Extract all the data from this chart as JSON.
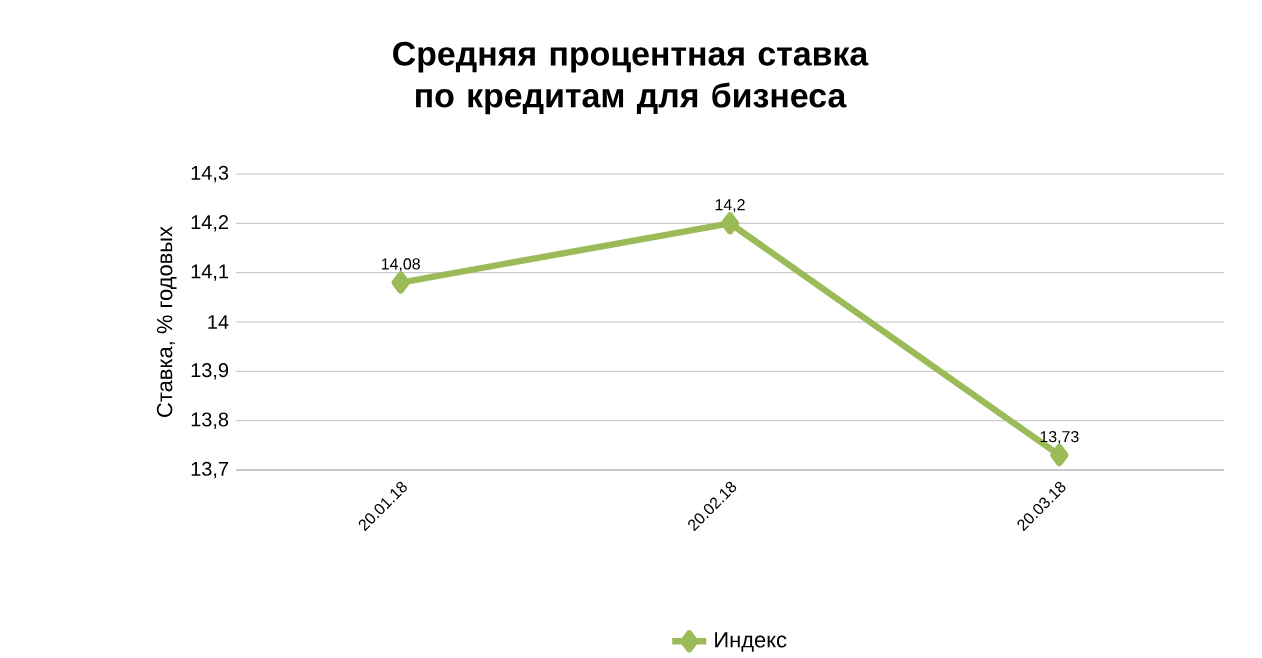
{
  "chart_data": {
    "type": "line",
    "title": "Средняя процентная ставка по кредитам для бизнеса",
    "ylabel": "Ставка, % годовых",
    "categories": [
      "20.01.18",
      "20.02.18",
      "20.03.18"
    ],
    "series": [
      {
        "name": "Индекс",
        "color": "#9bbb59",
        "values": [
          14.08,
          14.2,
          13.73
        ],
        "value_labels": [
          "14,08",
          "14,2",
          "13,73"
        ]
      }
    ],
    "ylim": [
      13.7,
      14.3
    ],
    "yticks": [
      {
        "value": 13.7,
        "label": "13,7"
      },
      {
        "value": 13.8,
        "label": "13,8"
      },
      {
        "value": 13.9,
        "label": "13,9"
      },
      {
        "value": 14,
        "label": "14"
      },
      {
        "value": 14.1,
        "label": "14,1"
      },
      {
        "value": 14.2,
        "label": "14,2"
      },
      {
        "value": 14.3,
        "label": "14,3"
      }
    ],
    "grid": "y",
    "legend": "bottom",
    "marker": "diamond",
    "line_style": "solid"
  }
}
